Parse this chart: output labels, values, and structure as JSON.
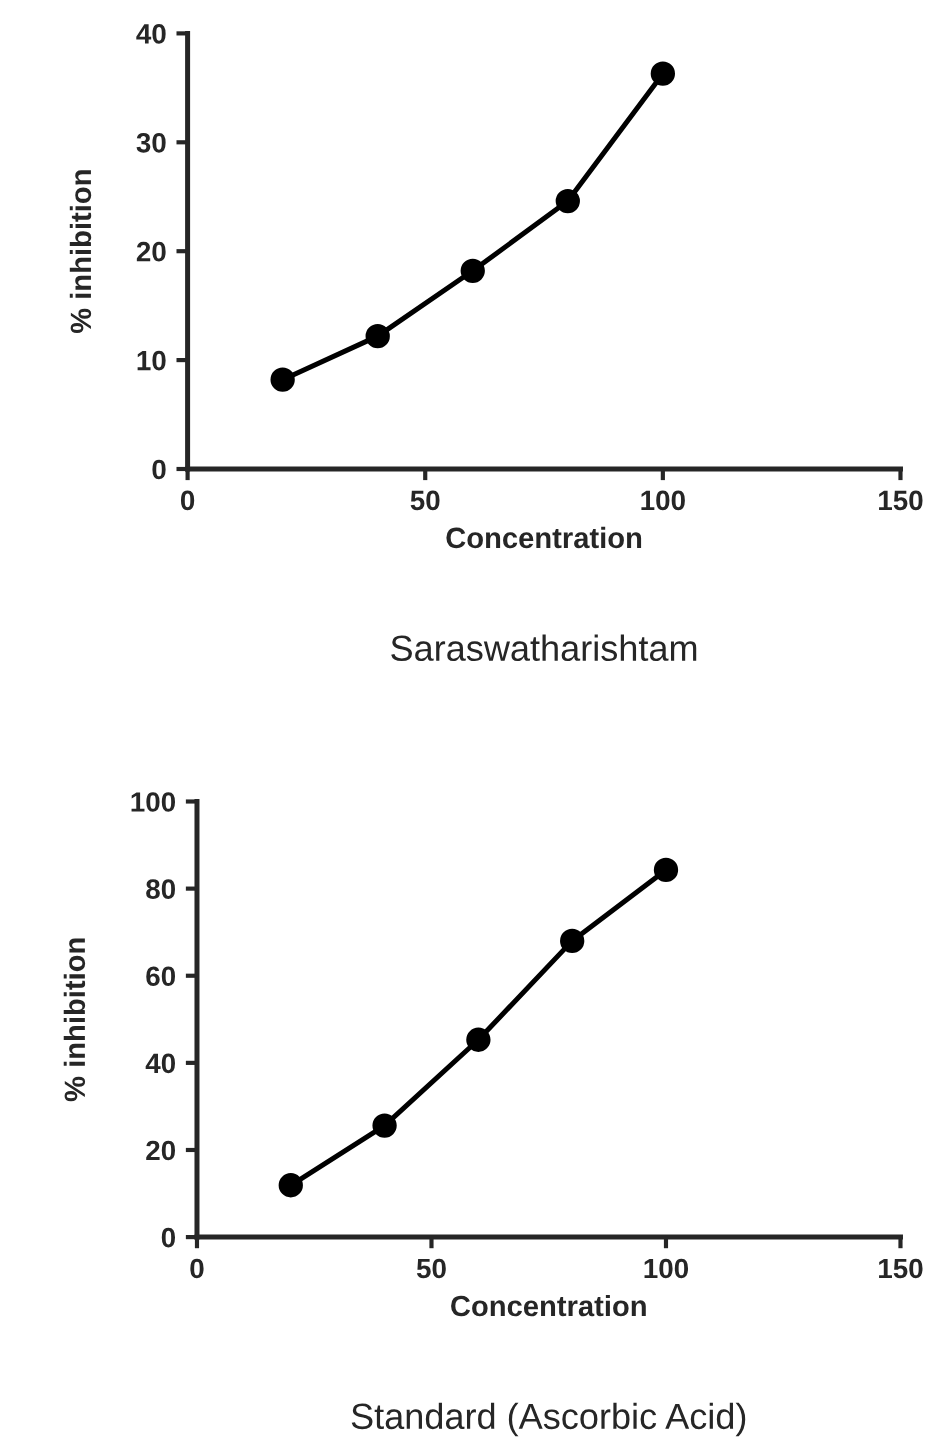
{
  "chart_data": [
    {
      "type": "line",
      "title": "Saraswatharishtam",
      "xlabel": "Concentration",
      "ylabel": "% inhibition",
      "x": [
        20,
        40,
        60,
        80,
        100
      ],
      "xlim": [
        0,
        150
      ],
      "xticks": [
        0,
        50,
        100,
        150
      ],
      "ylim": [
        0,
        40
      ],
      "yticks": [
        0,
        10,
        20,
        30,
        40
      ],
      "marker": "circle",
      "line_style": "solid",
      "grid": false,
      "legend": false,
      "series": [
        {
          "color": "#000000",
          "values": [
            8.2,
            12.2,
            18.2,
            24.6,
            36.3
          ]
        }
      ]
    },
    {
      "type": "line",
      "title": "Standard (Ascorbic Acid)",
      "xlabel": "Concentration",
      "ylabel": "% inhibition",
      "x": [
        20,
        40,
        60,
        80,
        100
      ],
      "xlim": [
        0,
        150
      ],
      "xticks": [
        0,
        50,
        100,
        150
      ],
      "ylim": [
        0,
        100
      ],
      "yticks": [
        0,
        20,
        40,
        60,
        80,
        100
      ],
      "marker": "circle",
      "line_style": "solid",
      "grid": false,
      "legend": false,
      "series": [
        {
          "color": "#000000",
          "values": [
            11.9,
            25.6,
            45.3,
            68.0,
            84.3
          ]
        }
      ]
    }
  ]
}
